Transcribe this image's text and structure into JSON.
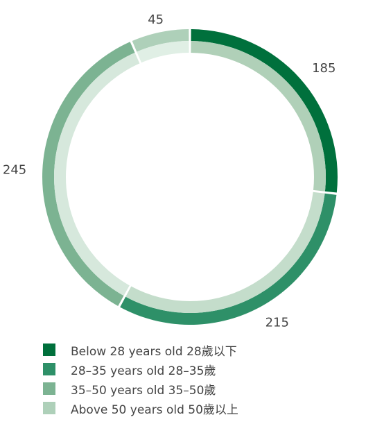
{
  "chart_data": {
    "type": "pie",
    "title": "",
    "categories": [
      "Below 28 years old 28歲以下",
      "28–35 years old 28–35歲",
      "35–50 years old 35–50歲",
      "Above 50 years old 50歲以上"
    ],
    "values": [
      185,
      215,
      245,
      45
    ],
    "data_labels": [
      "185",
      "215",
      "245",
      "45"
    ],
    "colors": [
      "#00703c",
      "#2e9068",
      "#7cb392",
      "#aed0b9"
    ],
    "inner_ring_colors": [
      "#b0d0b8",
      "#c4ddcb",
      "#d6e8dc",
      "#e0efe5"
    ],
    "style": "donut",
    "legend_position": "bottom-left"
  }
}
